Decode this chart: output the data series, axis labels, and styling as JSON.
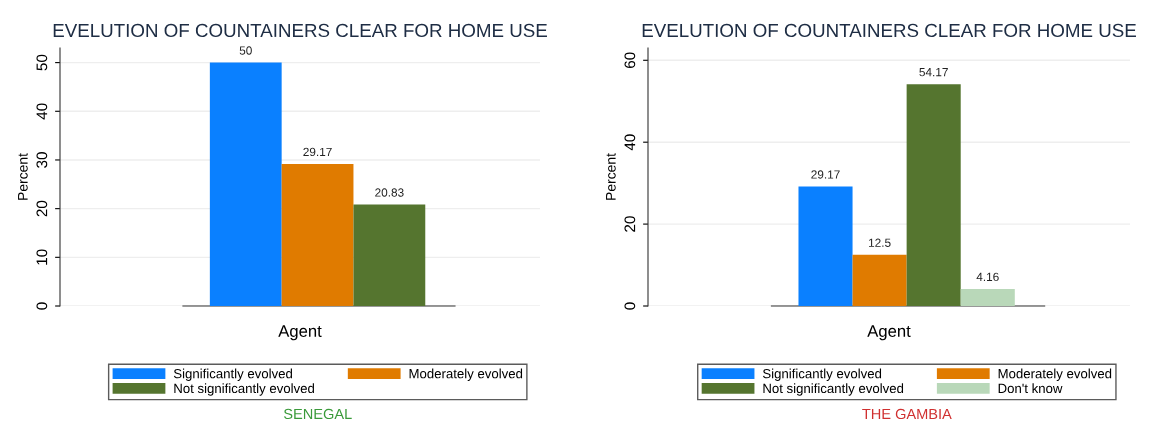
{
  "chart_data": [
    {
      "type": "bar",
      "title": "EVELUTION OF COUNTAINERS CLEAR FOR HOME USE",
      "xlabel": "Agent",
      "ylabel": "Percent",
      "categories": [
        null
      ],
      "series": [
        {
          "name": "Significantly evolved",
          "color": "#0a80ff",
          "values": [
            50
          ]
        },
        {
          "name": "Moderately evolved",
          "color": "#e07b00",
          "values": [
            29.17
          ]
        },
        {
          "name": "Not significantly evolved",
          "color": "#55752f",
          "values": [
            20.83
          ]
        }
      ],
      "ylim": [
        0,
        53
      ],
      "yticks": [
        0,
        10,
        20,
        30,
        40,
        50
      ],
      "grid": "y",
      "legend": "bottom",
      "data_labels": true,
      "annotations": [
        "SENEGAL"
      ]
    },
    {
      "type": "bar",
      "title": "EVELUTION OF COUNTAINERS CLEAR FOR HOME USE",
      "xlabel": "Agent",
      "ylabel": "Percent",
      "categories": [
        null
      ],
      "series": [
        {
          "name": "Significantly evolved",
          "color": "#0a80ff",
          "values": [
            29.17
          ]
        },
        {
          "name": "Moderately evolved",
          "color": "#e07b00",
          "values": [
            12.5
          ]
        },
        {
          "name": "Not significantly evolved",
          "color": "#55752f",
          "values": [
            54.17
          ]
        },
        {
          "name": "Don't know",
          "color": "#b9d8b9",
          "values": [
            4.16
          ]
        }
      ],
      "ylim": [
        0,
        63
      ],
      "yticks": [
        0,
        20,
        40,
        60
      ],
      "grid": "y",
      "legend": "bottom",
      "data_labels": true,
      "annotations": [
        "THE GAMBIA"
      ]
    }
  ]
}
